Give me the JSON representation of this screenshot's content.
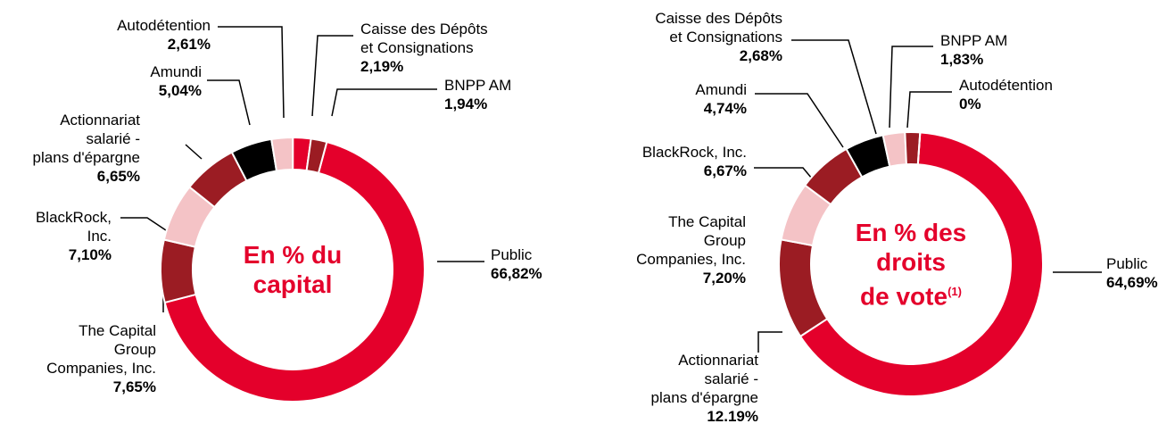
{
  "chart_data": [
    {
      "type": "pie",
      "title": "En % du\ncapital",
      "categories": [
        "Public",
        "The Capital\nGroup\nCompanies, Inc.",
        "BlackRock,\nInc.",
        "Actionnariat\nsalarié -\nplans d'épargne",
        "Amundi",
        "Autodétention",
        "Caisse des Dépôts\net Consignations",
        "BNPP AM"
      ],
      "values": [
        66.82,
        7.65,
        7.1,
        6.65,
        5.04,
        2.61,
        2.19,
        1.94
      ],
      "value_labels": [
        "66,82%",
        "7,65%",
        "7,10%",
        "6,65%",
        "5,04%",
        "2,61%",
        "2,19%",
        "1,94%"
      ],
      "colors": [
        "#e4002b",
        "#9b1c23",
        "#f4c3c6",
        "#9b1c23",
        "#000000",
        "#f4c3c6",
        "#e4002b",
        "#9b1c23"
      ]
    },
    {
      "type": "pie",
      "title": "En % des\ndroits\nde vote",
      "title_note": "(1)",
      "categories": [
        "Public",
        "Actionnariat\nsalarié -\nplans d'épargne",
        "The Capital\nGroup\nCompanies, Inc.",
        "BlackRock, Inc.",
        "Amundi",
        "Caisse des Dépôts\net Consignations",
        "BNPP AM",
        "Autodétention"
      ],
      "values": [
        64.69,
        12.19,
        7.2,
        6.67,
        4.74,
        2.68,
        1.83,
        0
      ],
      "value_labels": [
        "64,69%",
        "12.19%",
        "7,20%",
        "6,67%",
        "4,74%",
        "2,68%",
        "1,83%",
        "0%"
      ],
      "colors": [
        "#e4002b",
        "#9b1c23",
        "#f4c3c6",
        "#9b1c23",
        "#000000",
        "#f4c3c6",
        "#9b1c23",
        "#e4002b"
      ]
    }
  ]
}
